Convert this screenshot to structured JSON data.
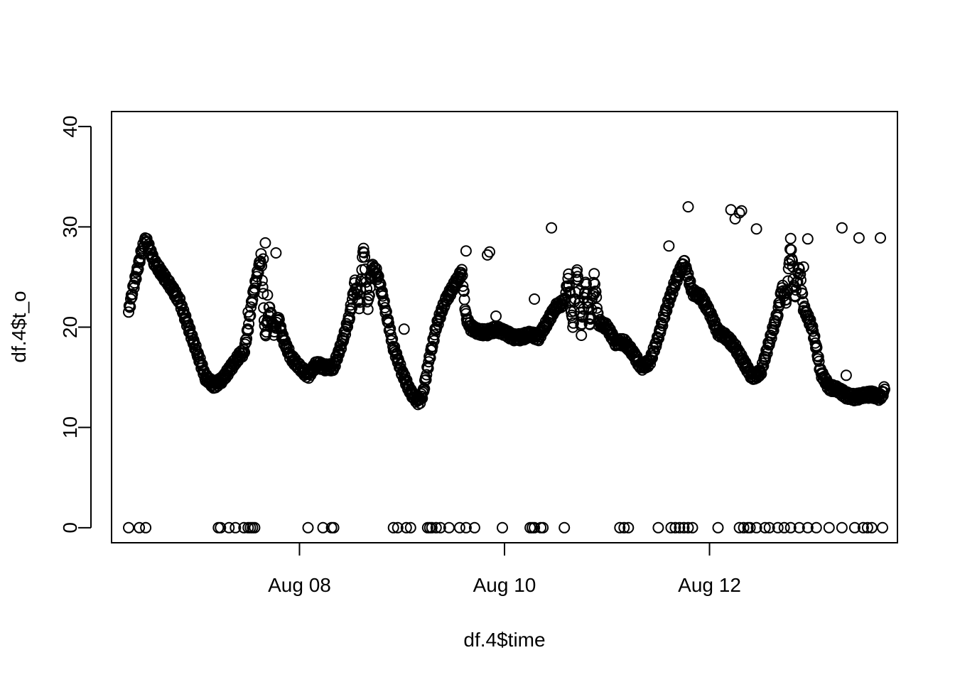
{
  "chart_data": {
    "type": "scatter",
    "title": "",
    "xlabel": "df.4$time",
    "ylabel": "df.4$t_o",
    "x_ticks": [
      "Aug 08",
      "Aug 10",
      "Aug 12"
    ],
    "x_tick_values": [
      "2023-08-08",
      "2023-08-10",
      "2023-08-12"
    ],
    "xlim": [
      "2023-08-06 04:00",
      "2023-08-13 20:00"
    ],
    "y_ticks": [
      0,
      10,
      20,
      30,
      40
    ],
    "ylim": [
      -1.5,
      41.5
    ],
    "grid": false,
    "legend": "none",
    "marker": "open-circle",
    "colors": {
      "points": "#000000",
      "frame": "#000000",
      "background": "#ffffff"
    },
    "series": [
      {
        "values_dense": [
          [
            "2023-08-06 08:00",
            21.5
          ],
          [
            "2023-08-06 09:00",
            23.8
          ],
          [
            "2023-08-06 10:00",
            25.6
          ],
          [
            "2023-08-06 11:00",
            27.5
          ],
          [
            "2023-08-06 12:00",
            28.8
          ],
          [
            "2023-08-06 14:00",
            26.5
          ],
          [
            "2023-08-06 16:00",
            25.2
          ],
          [
            "2023-08-06 18:00",
            24.0
          ],
          [
            "2023-08-06 20:00",
            22.5
          ],
          [
            "2023-08-06 22:00",
            20.0
          ],
          [
            "2023-08-07 00:00",
            17.5
          ],
          [
            "2023-08-07 02:00",
            15.0
          ],
          [
            "2023-08-07 04:00",
            14.2
          ],
          [
            "2023-08-07 06:00",
            14.8
          ],
          [
            "2023-08-07 08:00",
            16.0
          ],
          [
            "2023-08-07 10:00",
            17.2
          ],
          [
            "2023-08-07 11:00",
            17.5
          ],
          [
            "2023-08-07 12:00",
            20.0
          ],
          [
            "2023-08-07 13:00",
            23.0
          ],
          [
            "2023-08-07 14:00",
            25.0
          ],
          [
            "2023-08-07 15:00",
            27.0
          ],
          [
            "2023-08-07 16:00",
            19.0
          ],
          [
            "2023-08-07 17:00",
            22.0
          ],
          [
            "2023-08-07 18:00",
            19.5
          ],
          [
            "2023-08-07 19:00",
            21.0
          ],
          [
            "2023-08-07 20:00",
            19.0
          ],
          [
            "2023-08-07 22:00",
            17.0
          ],
          [
            "2023-08-08 00:00",
            16.0
          ],
          [
            "2023-08-08 02:00",
            15.2
          ],
          [
            "2023-08-08 04:00",
            16.3
          ],
          [
            "2023-08-08 06:00",
            16.0
          ],
          [
            "2023-08-08 08:00",
            16.0
          ],
          [
            "2023-08-08 10:00",
            18.5
          ],
          [
            "2023-08-08 12:00",
            21.5
          ],
          [
            "2023-08-08 13:00",
            24.5
          ],
          [
            "2023-08-08 14:00",
            22.0
          ],
          [
            "2023-08-08 15:00",
            28.2
          ],
          [
            "2023-08-08 16:00",
            22.0
          ],
          [
            "2023-08-08 17:00",
            26.0
          ],
          [
            "2023-08-08 18:00",
            25.5
          ],
          [
            "2023-08-08 19:00",
            24.0
          ],
          [
            "2023-08-08 20:00",
            22.0
          ],
          [
            "2023-08-08 22:00",
            18.0
          ],
          [
            "2023-08-09 00:00",
            15.5
          ],
          [
            "2023-08-09 02:00",
            13.5
          ],
          [
            "2023-08-09 04:00",
            12.5
          ],
          [
            "2023-08-09 05:00",
            13.5
          ],
          [
            "2023-08-09 06:00",
            16.0
          ],
          [
            "2023-08-09 08:00",
            20.0
          ],
          [
            "2023-08-09 10:00",
            22.5
          ],
          [
            "2023-08-09 12:00",
            24.0
          ],
          [
            "2023-08-09 14:00",
            25.5
          ],
          [
            "2023-08-09 15:00",
            21.0
          ],
          [
            "2023-08-09 16:00",
            20.0
          ],
          [
            "2023-08-09 18:00",
            19.5
          ],
          [
            "2023-08-09 20:00",
            19.5
          ],
          [
            "2023-08-09 22:00",
            19.8
          ],
          [
            "2023-08-10 00:00",
            19.5
          ],
          [
            "2023-08-10 02:00",
            19.0
          ],
          [
            "2023-08-10 04:00",
            19.0
          ],
          [
            "2023-08-10 06:00",
            19.3
          ],
          [
            "2023-08-10 08:00",
            19.0
          ],
          [
            "2023-08-10 10:00",
            20.5
          ],
          [
            "2023-08-10 12:00",
            22.0
          ],
          [
            "2023-08-10 14:00",
            22.5
          ],
          [
            "2023-08-10 15:00",
            25.0
          ],
          [
            "2023-08-10 16:00",
            20.0
          ],
          [
            "2023-08-10 17:00",
            26.0
          ],
          [
            "2023-08-10 18:00",
            19.5
          ],
          [
            "2023-08-10 19:00",
            24.5
          ],
          [
            "2023-08-10 20:00",
            20.0
          ],
          [
            "2023-08-10 21:00",
            25.0
          ],
          [
            "2023-08-10 22:00",
            20.5
          ],
          [
            "2023-08-11 00:00",
            20.0
          ],
          [
            "2023-08-11 02:00",
            18.5
          ],
          [
            "2023-08-11 04:00",
            18.5
          ],
          [
            "2023-08-11 06:00",
            17.5
          ],
          [
            "2023-08-11 08:00",
            16.0
          ],
          [
            "2023-08-11 10:00",
            16.5
          ],
          [
            "2023-08-11 12:00",
            19.0
          ],
          [
            "2023-08-11 14:00",
            22.0
          ],
          [
            "2023-08-11 16:00",
            24.5
          ],
          [
            "2023-08-11 18:00",
            26.5
          ],
          [
            "2023-08-11 20:00",
            23.5
          ],
          [
            "2023-08-11 22:00",
            23.0
          ],
          [
            "2023-08-12 00:00",
            21.5
          ],
          [
            "2023-08-12 02:00",
            19.5
          ],
          [
            "2023-08-12 04:00",
            19.0
          ],
          [
            "2023-08-12 06:00",
            18.0
          ],
          [
            "2023-08-12 08:00",
            16.5
          ],
          [
            "2023-08-12 10:00",
            15.0
          ],
          [
            "2023-08-12 12:00",
            15.5
          ],
          [
            "2023-08-12 14:00",
            18.5
          ],
          [
            "2023-08-12 16:00",
            21.5
          ],
          [
            "2023-08-12 17:00",
            24.0
          ],
          [
            "2023-08-12 18:00",
            22.5
          ],
          [
            "2023-08-12 19:00",
            28.5
          ],
          [
            "2023-08-12 20:00",
            23.0
          ],
          [
            "2023-08-12 21:00",
            26.0
          ],
          [
            "2023-08-12 22:00",
            22.0
          ],
          [
            "2023-08-13 00:00",
            20.0
          ],
          [
            "2023-08-13 01:00",
            18.0
          ],
          [
            "2023-08-13 02:00",
            15.5
          ],
          [
            "2023-08-13 04:00",
            14.0
          ],
          [
            "2023-08-13 06:00",
            13.8
          ],
          [
            "2023-08-13 08:00",
            13.2
          ],
          [
            "2023-08-13 10:00",
            13.0
          ],
          [
            "2023-08-13 12:00",
            13.2
          ],
          [
            "2023-08-13 14:00",
            13.3
          ],
          [
            "2023-08-13 16:00",
            13.0
          ],
          [
            "2023-08-13 17:00",
            13.8
          ]
        ],
        "outliers": [
          [
            "2023-08-07 15:30",
            26.8
          ],
          [
            "2023-08-07 16:00",
            28.4
          ],
          [
            "2023-08-07 16:30",
            23.2
          ],
          [
            "2023-08-07 18:30",
            27.4
          ],
          [
            "2023-08-07 20:00",
            19.1
          ],
          [
            "2023-08-07 12:00",
            21.5
          ],
          [
            "2023-08-08 08:30",
            17.0
          ],
          [
            "2023-08-08 12:00",
            22.2
          ],
          [
            "2023-08-09 00:30",
            19.8
          ],
          [
            "2023-08-09 15:00",
            27.6
          ],
          [
            "2023-08-09 20:00",
            27.2
          ],
          [
            "2023-08-09 20:30",
            27.5
          ],
          [
            "2023-08-09 22:00",
            21.1
          ],
          [
            "2023-08-10 07:00",
            22.8
          ],
          [
            "2023-08-10 11:00",
            29.9
          ],
          [
            "2023-08-10 21:00",
            23.3
          ],
          [
            "2023-08-11 14:30",
            28.1
          ],
          [
            "2023-08-11 19:00",
            32.0
          ],
          [
            "2023-08-12 05:00",
            31.7
          ],
          [
            "2023-08-12 06:00",
            30.8
          ],
          [
            "2023-08-12 07:00",
            31.4
          ],
          [
            "2023-08-12 07:30",
            31.6
          ],
          [
            "2023-08-12 11:00",
            29.8
          ],
          [
            "2023-08-12 22:00",
            26.0
          ],
          [
            "2023-08-12 23:00",
            28.8
          ],
          [
            "2023-08-13 07:00",
            29.9
          ],
          [
            "2023-08-13 08:00",
            15.2
          ],
          [
            "2023-08-13 11:00",
            28.9
          ],
          [
            "2023-08-13 16:00",
            28.9
          ]
        ],
        "zeros": [
          "2023-08-06 08:00",
          "2023-08-06 10:30",
          "2023-08-06 12:00",
          "2023-08-07 05:00",
          "2023-08-07 05:30",
          "2023-08-07 07:30",
          "2023-08-07 09:00",
          "2023-08-07 11:00",
          "2023-08-07 12:00",
          "2023-08-07 12:30",
          "2023-08-07 13:00",
          "2023-08-07 13:30",
          "2023-08-08 02:00",
          "2023-08-08 05:30",
          "2023-08-08 07:30",
          "2023-08-08 08:00",
          "2023-08-08 22:00",
          "2023-08-08 23:00",
          "2023-08-09 01:00",
          "2023-08-09 02:00",
          "2023-08-09 06:00",
          "2023-08-09 06:30",
          "2023-08-09 07:00",
          "2023-08-09 08:00",
          "2023-08-09 09:00",
          "2023-08-09 11:00",
          "2023-08-09 13:30",
          "2023-08-09 15:00",
          "2023-08-09 17:00",
          "2023-08-09 23:30",
          "2023-08-10 06:00",
          "2023-08-10 06:30",
          "2023-08-10 07:00",
          "2023-08-10 08:30",
          "2023-08-10 09:00",
          "2023-08-10 14:00",
          "2023-08-11 03:00",
          "2023-08-11 04:00",
          "2023-08-11 05:00",
          "2023-08-11 12:00",
          "2023-08-11 15:00",
          "2023-08-11 16:00",
          "2023-08-11 17:00",
          "2023-08-11 18:00",
          "2023-08-11 19:00",
          "2023-08-11 20:00",
          "2023-08-12 02:00",
          "2023-08-12 07:00",
          "2023-08-12 08:00",
          "2023-08-12 09:00",
          "2023-08-12 09:30",
          "2023-08-12 11:00",
          "2023-08-12 13:00",
          "2023-08-12 14:00",
          "2023-08-12 16:00",
          "2023-08-12 17:30",
          "2023-08-12 19:00",
          "2023-08-12 21:00",
          "2023-08-12 23:00",
          "2023-08-13 01:00",
          "2023-08-13 04:00",
          "2023-08-13 07:00",
          "2023-08-13 10:00",
          "2023-08-13 12:00",
          "2023-08-13 13:00",
          "2023-08-13 14:00",
          "2023-08-13 16:30"
        ]
      }
    ]
  }
}
